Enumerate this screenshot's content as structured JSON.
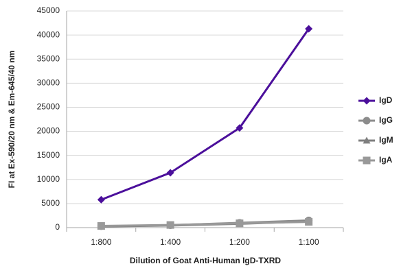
{
  "chart_data": {
    "type": "line",
    "y_label": "FI at Ex-590/20 nm & Em-645/40 nm",
    "x_label": "Dilution of Goat Anti-Human IgD-TXRD",
    "categories": [
      "1:800",
      "1:400",
      "1:200",
      "1:100"
    ],
    "series": [
      {
        "name": "IgD",
        "color": "#4b0f9b",
        "marker": "diamond",
        "values": [
          5800,
          11400,
          20700,
          41300
        ]
      },
      {
        "name": "IgG",
        "color": "#8c8c8c",
        "marker": "circle",
        "values": [
          300,
          500,
          1000,
          1500
        ]
      },
      {
        "name": "IgM",
        "color": "#7f7f7f",
        "marker": "triangle",
        "values": [
          250,
          450,
          800,
          1300
        ]
      },
      {
        "name": "IgA",
        "color": "#999999",
        "marker": "square",
        "values": [
          350,
          550,
          900,
          1200
        ]
      }
    ],
    "ylim": [
      0,
      45000
    ],
    "yticks": [
      0,
      5000,
      10000,
      15000,
      20000,
      25000,
      30000,
      35000,
      40000,
      45000
    ],
    "grid": true,
    "legend": "right"
  }
}
